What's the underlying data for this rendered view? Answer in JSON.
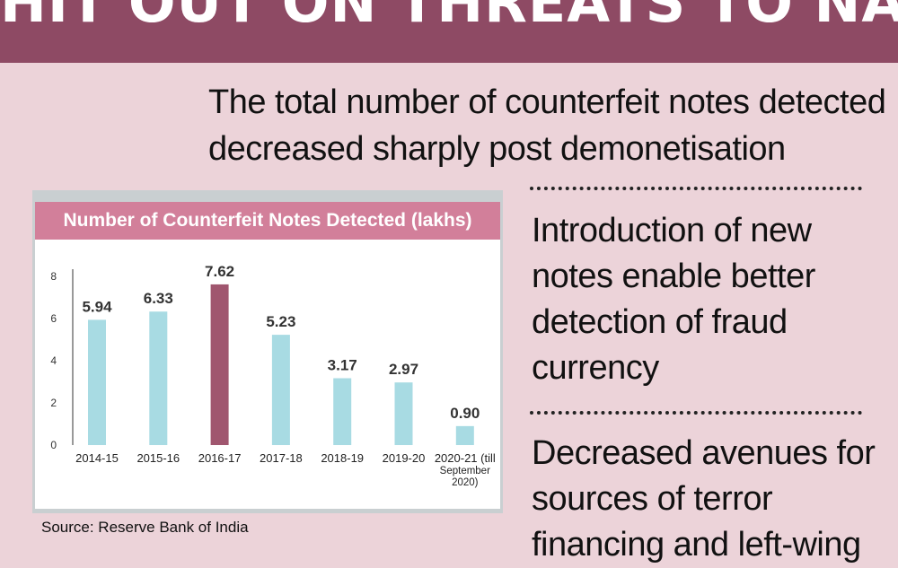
{
  "banner": {
    "title": "HIT OUT ON THREATS TO NATIONAL SECURITY?"
  },
  "headline": {
    "line1": "The total number of counterfeit notes detected",
    "line2": "decreased sharply post demonetisation"
  },
  "points": [
    {
      "line1": "Introduction of new",
      "line2": "notes enable better",
      "line3": "detection of fraud",
      "line4": "currency"
    },
    {
      "line1": "Decreased avenues for",
      "line2": "sources of terror",
      "line3": "financing and left-wing"
    }
  ],
  "source": "Source: Reserve Bank of India",
  "colors": {
    "banner": "#8e4a64",
    "background": "#ecd3d9",
    "bar": "#a8dbe3",
    "highlight_bar": "#a0566f",
    "chart_header": "#d27f9a"
  },
  "chart_data": {
    "type": "bar",
    "title": "Number of Counterfeit Notes Detected (lakhs)",
    "xlabel": "",
    "ylabel": "",
    "categories": [
      "2014-15",
      "2015-16",
      "2016-17",
      "2017-18",
      "2018-19",
      "2019-20",
      "2020-21 (till September 2020)"
    ],
    "category_lines": [
      [
        "2014-15"
      ],
      [
        "2015-16"
      ],
      [
        "2016-17"
      ],
      [
        "2017-18"
      ],
      [
        "2018-19"
      ],
      [
        "2019-20"
      ],
      [
        "2020-21 (till",
        "September",
        "2020)"
      ]
    ],
    "values": [
      5.94,
      6.33,
      7.62,
      5.23,
      3.17,
      2.97,
      0.9
    ],
    "value_labels": [
      "5.94",
      "6.33",
      "7.62",
      "5.23",
      "3.17",
      "2.97",
      "0.90"
    ],
    "highlight_index": 2,
    "ylim": [
      0,
      8
    ],
    "yticks": [
      0,
      2,
      4,
      6,
      8
    ],
    "grid": false,
    "legend": "none"
  }
}
